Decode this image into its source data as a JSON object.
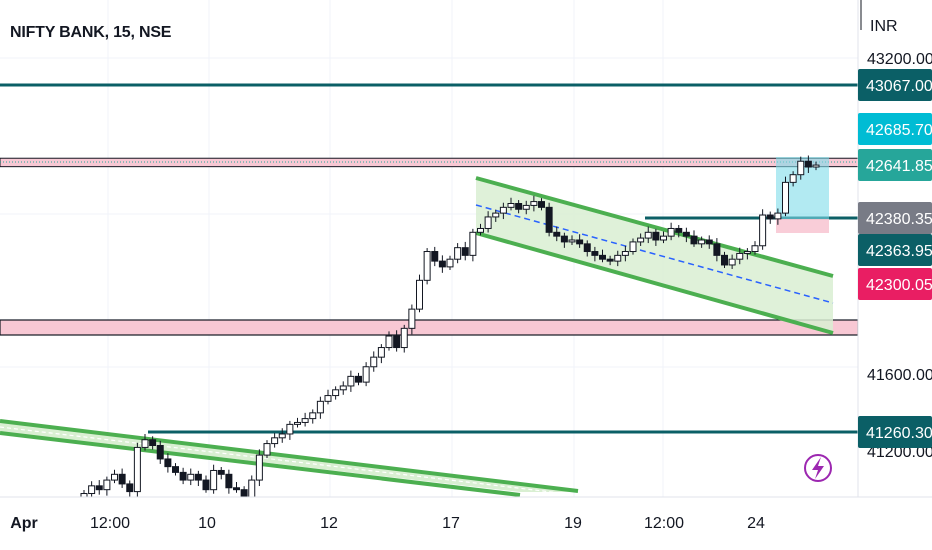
{
  "header": {
    "symbol_title": "NIFTY BANK, 15, NSE",
    "currency": "INR"
  },
  "colors": {
    "level_line": "#0b5f66",
    "channel": "#4caf50",
    "channel_fill": "#d9efd2",
    "midline": "#2962ff",
    "zone_fill": "#f8c8d4",
    "up_candle": "#ffffff",
    "down_candle": "#131722",
    "target_box": "#7fdcea",
    "stop_box": "#f8c8d4",
    "badge_dark": "#0b5f66",
    "badge_cyan": "#00bcd4",
    "badge_teal": "#26a69a",
    "badge_gray": "#787b86",
    "badge_red": "#e91e63"
  },
  "chart_data": {
    "type": "candlestick",
    "title": "NIFTY BANK, 15, NSE",
    "unit": "INR",
    "x_tick_labels": [
      "Apr",
      "12:00",
      "10",
      "12",
      "17",
      "19",
      "12:00",
      "24"
    ],
    "y_tick_labels": [
      "43200.00",
      "41600.00",
      "41200.00"
    ],
    "price_range": [
      41000,
      43400
    ],
    "price_badges": [
      {
        "value": "43067.00",
        "style": "dark"
      },
      {
        "value": "42685.70",
        "style": "cyan"
      },
      {
        "value": "42641.85",
        "style": "teal"
      },
      {
        "value": "42380.35",
        "style": "gray"
      },
      {
        "value": "42363.95",
        "style": "dark"
      },
      {
        "value": "42300.05",
        "style": "red"
      },
      {
        "value": "41260.30",
        "style": "dark"
      }
    ],
    "horizontal_levels": [
      43067.0,
      42380.35,
      41260.3
    ],
    "supply_zone": [
      42641.85,
      42685.7
    ],
    "demand_zone": [
      41740,
      41800
    ],
    "close_approx": [
      40940,
      40980,
      40960,
      41010,
      41040,
      40990,
      40950,
      41180,
      41220,
      41190,
      41120,
      41080,
      41050,
      41010,
      41040,
      41010,
      40960,
      41060,
      41040,
      40970,
      40960,
      40920,
      41010,
      41140,
      41200,
      41230,
      41250,
      41300,
      41310,
      41330,
      41360,
      41420,
      41450,
      41480,
      41500,
      41550,
      41520,
      41600,
      41650,
      41700,
      41760,
      41700,
      41800,
      41900,
      42050,
      42200,
      42150,
      42120,
      42160,
      42220,
      42180,
      42300,
      42320,
      42380,
      42400,
      42430,
      42450,
      42420,
      42440,
      42460,
      42430,
      42300,
      42280,
      42250,
      42260,
      42240,
      42200,
      42180,
      42160,
      42150,
      42180,
      42200,
      42250,
      42270,
      42300,
      42260,
      42280,
      42320,
      42300,
      42280,
      42240,
      42260,
      42240,
      42180,
      42130,
      42160,
      42190,
      42200,
      42230,
      42390,
      42370,
      42400,
      42560,
      42600,
      42670,
      42640,
      42650
    ]
  }
}
